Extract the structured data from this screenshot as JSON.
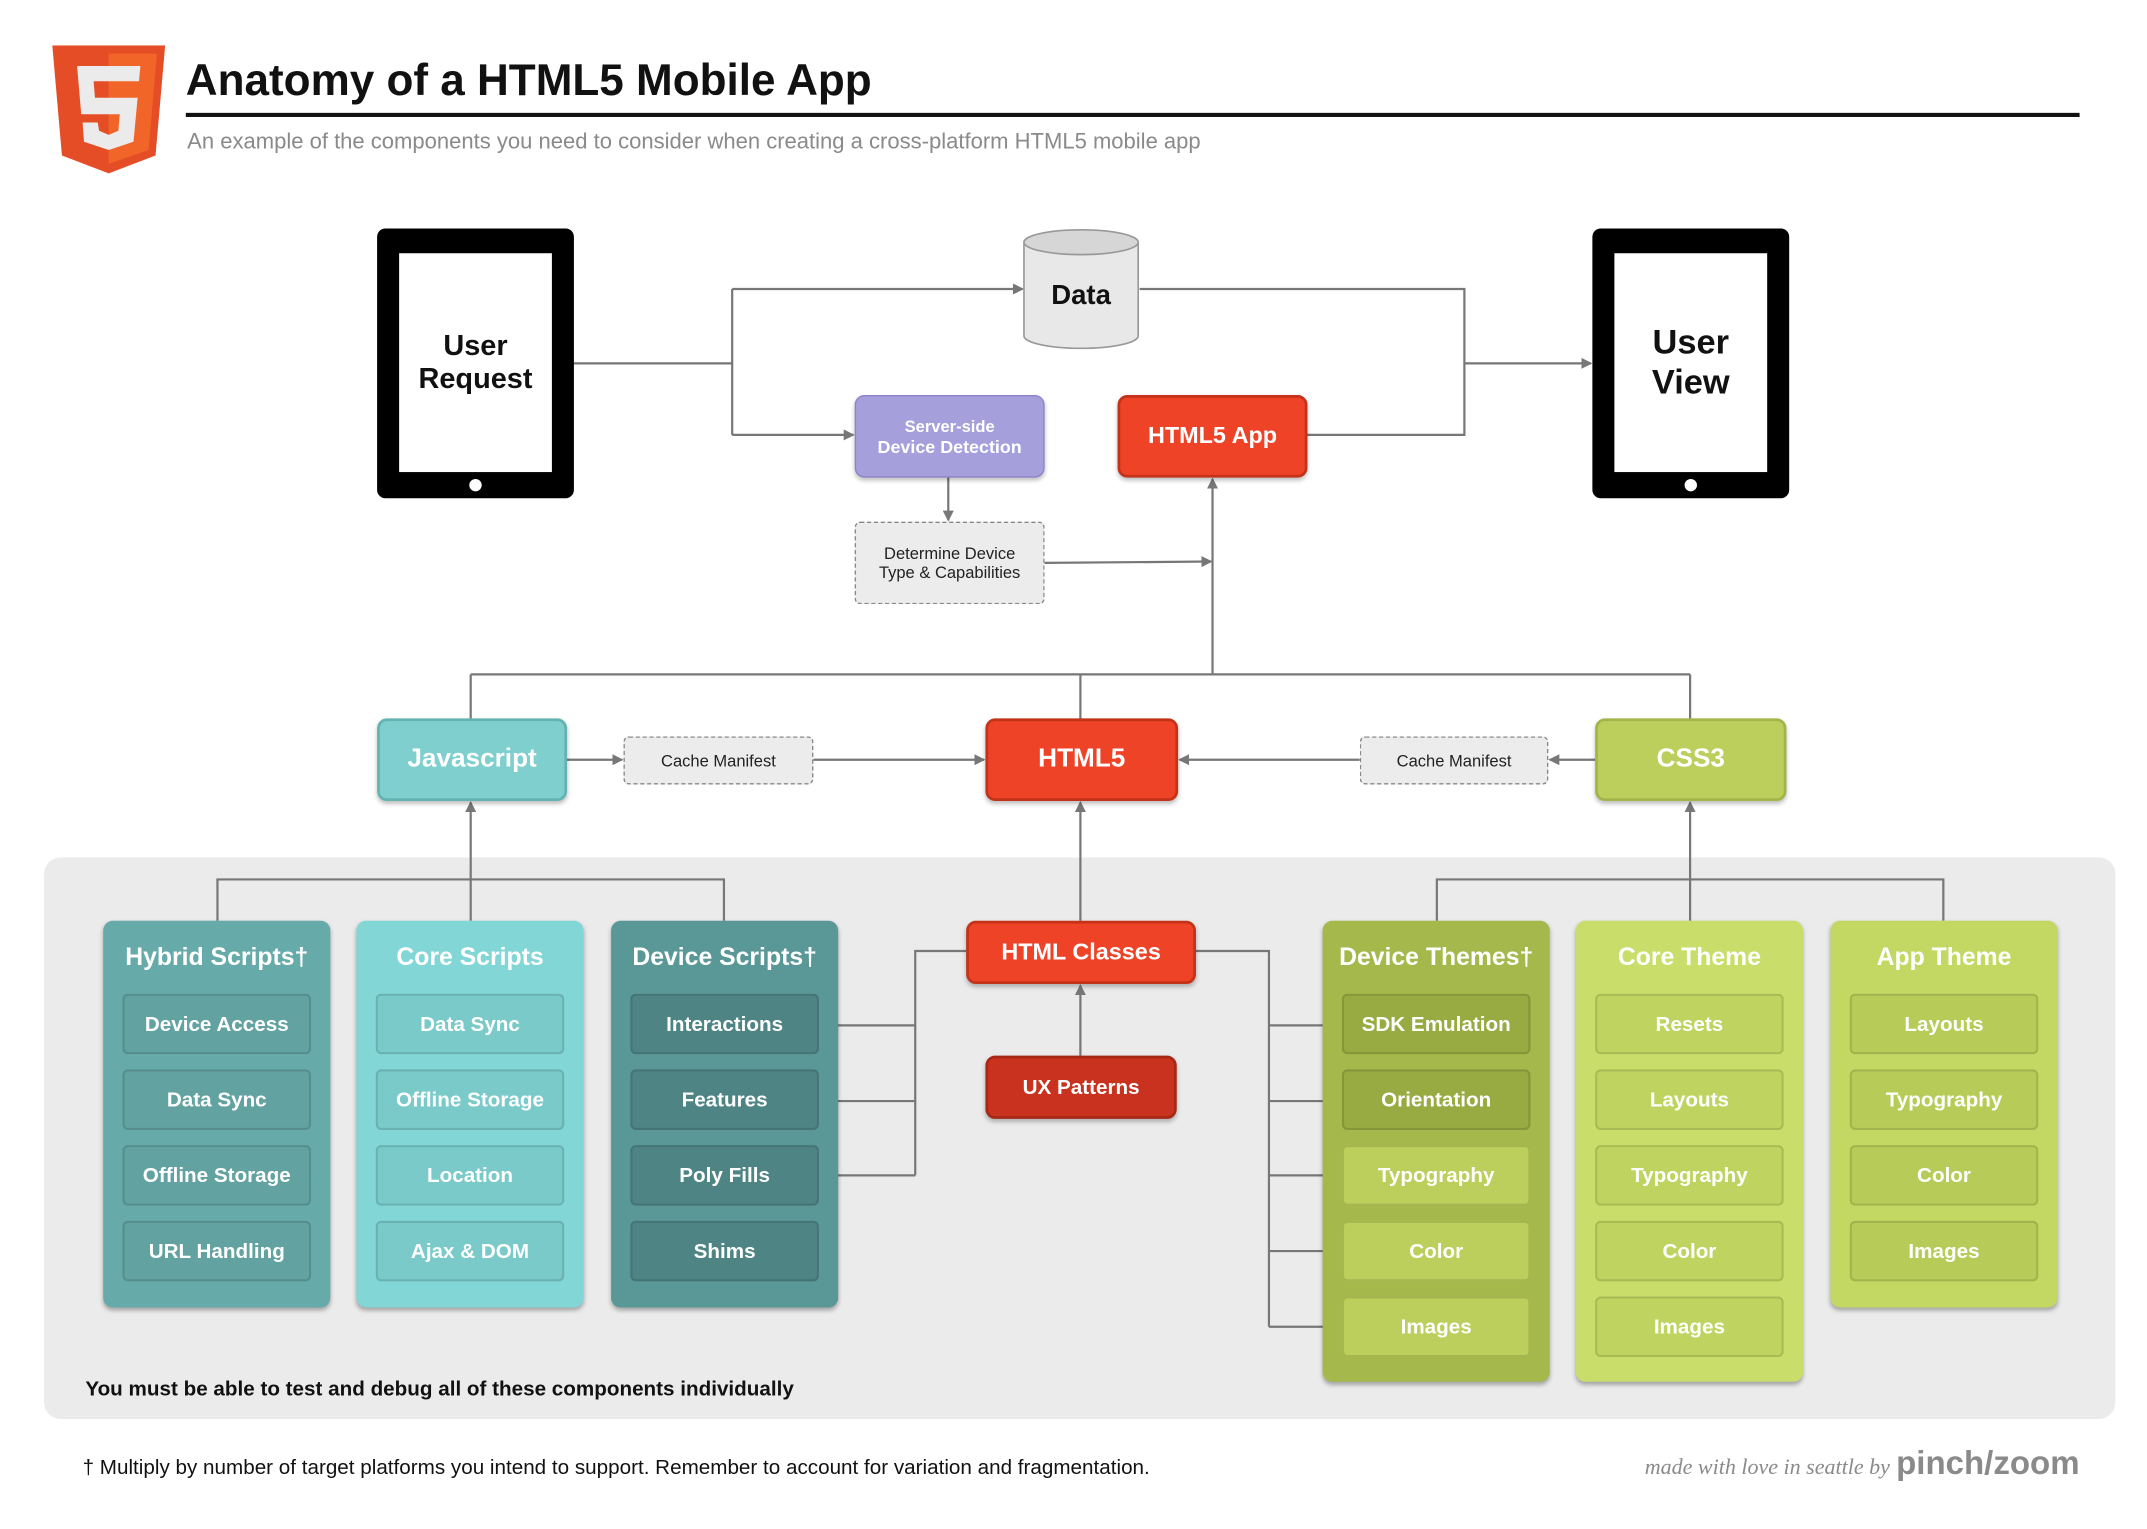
{
  "header": {
    "title": "Anatomy of a HTML5 Mobile App",
    "subtitle": "An example of the components you need to consider when creating a cross-platform HTML5 mobile app",
    "logo": "html5-shield-logo"
  },
  "flow": {
    "user_request": "User Request",
    "user_view": "User View",
    "data": "Data",
    "server_detection": [
      "Server-side",
      "Device Detection"
    ],
    "html5_app": "HTML5 App",
    "determine_device": [
      "Determine Device",
      "Type & Capabilities"
    ],
    "javascript": "Javascript",
    "html5": "HTML5",
    "css3": "CSS3",
    "cache_manifest_left": "Cache Manifest",
    "cache_manifest_right": "Cache Manifest",
    "html_classes": "HTML Classes",
    "ux_patterns": "UX Patterns"
  },
  "columns": [
    {
      "title": "Hybrid Scripts†",
      "items": [
        "Device Access",
        "Data Sync",
        "Offline Storage",
        "URL Handling"
      ]
    },
    {
      "title": "Core Scripts",
      "items": [
        "Data Sync",
        "Offline Storage",
        "Location",
        "Ajax & DOM"
      ]
    },
    {
      "title": "Device Scripts†",
      "items": [
        "Interactions",
        "Features",
        "Poly Fills",
        "Shims"
      ]
    },
    {
      "title": "Device Themes†",
      "items": [
        "SDK Emulation",
        "Orientation",
        "Typography",
        "Color",
        "Images"
      ]
    },
    {
      "title": "Core Theme",
      "items": [
        "Resets",
        "Layouts",
        "Typography",
        "Color",
        "Images"
      ]
    },
    {
      "title": "App Theme",
      "items": [
        "Layouts",
        "Typography",
        "Color",
        "Images"
      ]
    }
  ],
  "panel_note": "You must be able to test and debug all of these components individually",
  "footnote": "† Multiply by number of target platforms you intend to support. Remember to account for variation and fragmentation.",
  "credit": {
    "text": "made with love in seattle by",
    "brand": "pinch/zoom"
  },
  "colors": {
    "red": "#ee4327",
    "purple": "#a59fdc",
    "teal": "#7fcfcf",
    "green": "#bccf5c",
    "panel": "#ebebeb"
  }
}
